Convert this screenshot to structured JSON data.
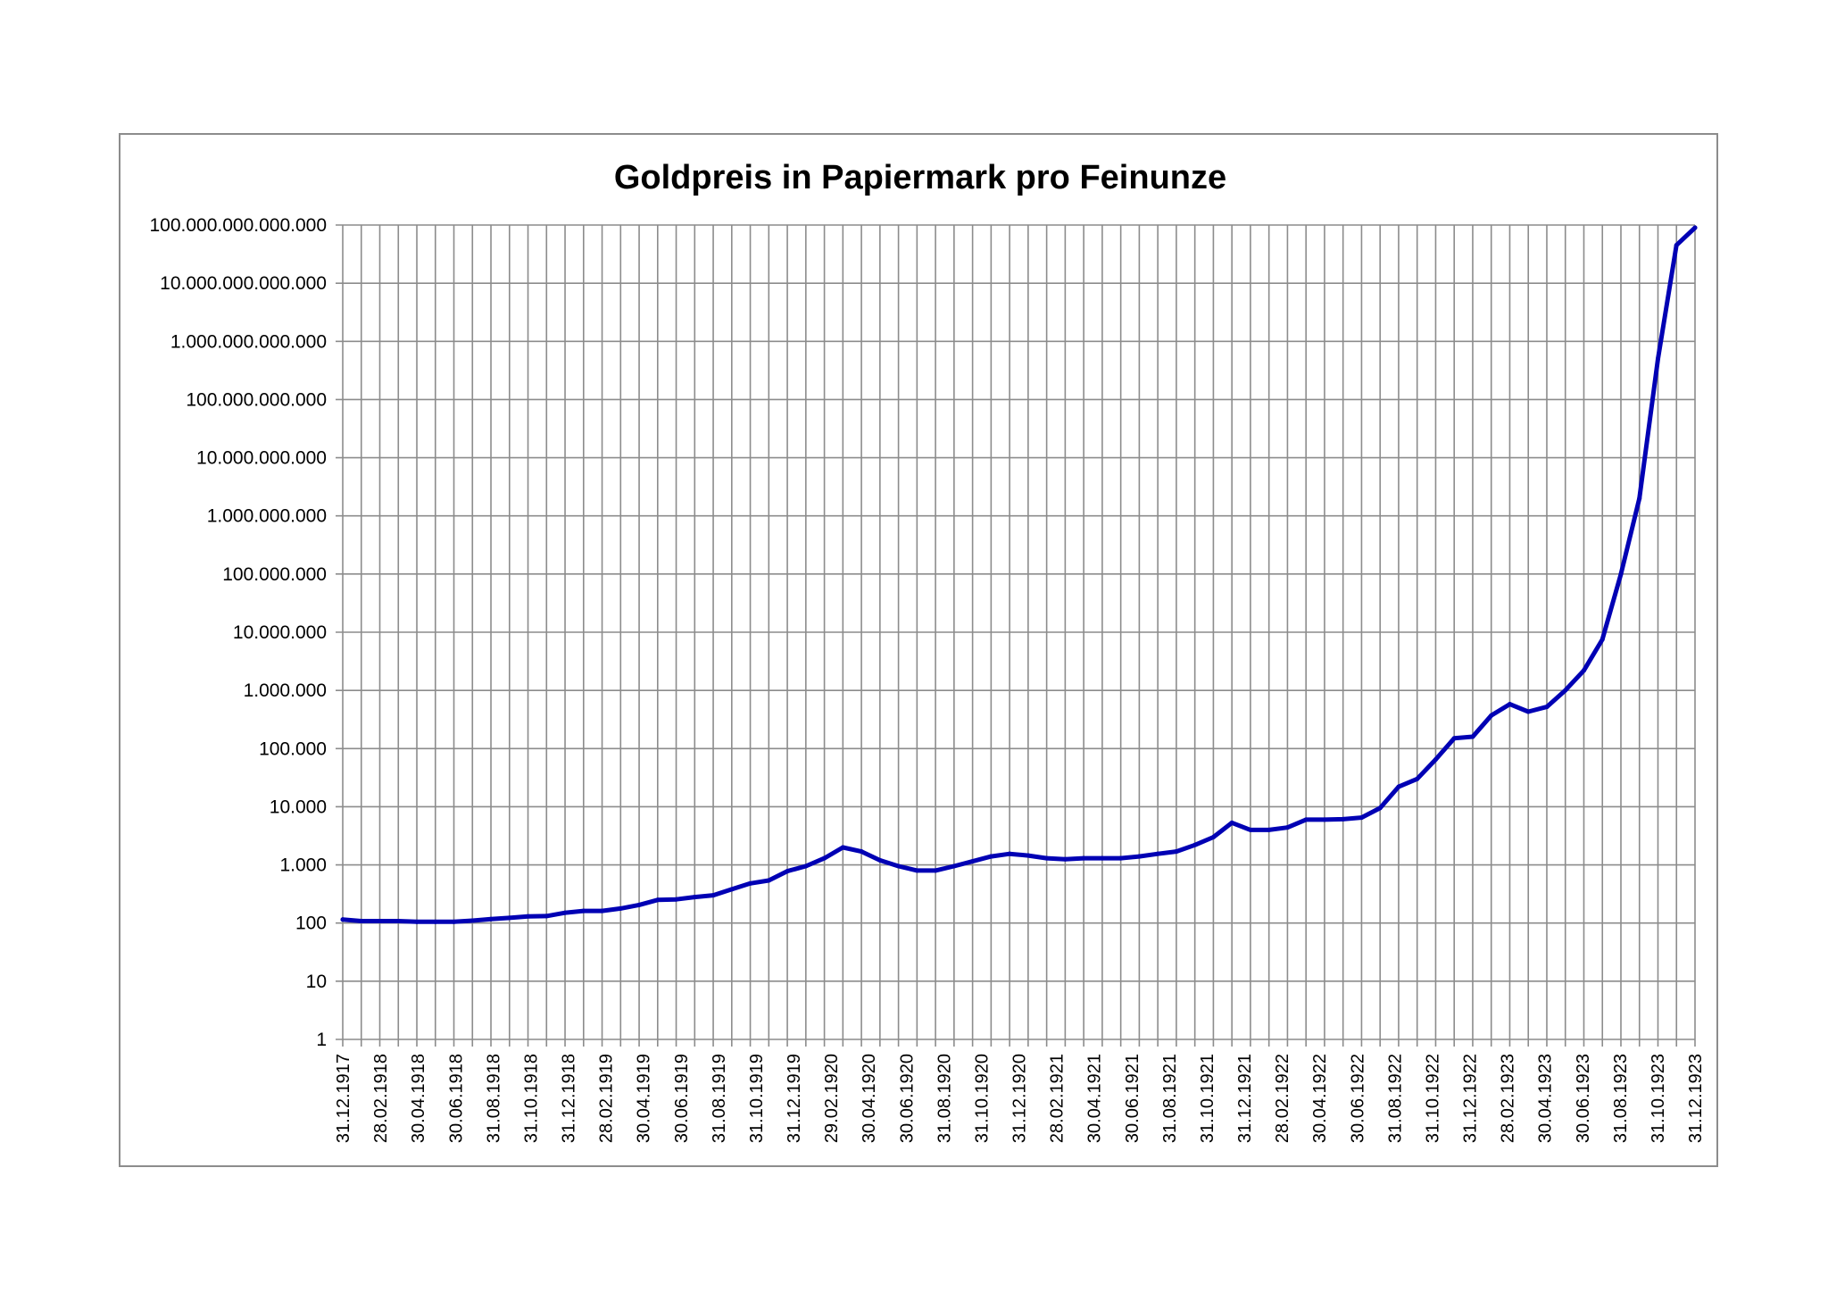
{
  "chart_data": {
    "type": "line",
    "title": "Goldpreis in Papiermark pro Feinunze",
    "y_scale": "log",
    "ylim": [
      1,
      100000000000000
    ],
    "y_tick_labels": [
      "1",
      "10",
      "100",
      "1.000",
      "10.000",
      "100.000",
      "1.000.000",
      "10.000.000",
      "100.000.000",
      "1.000.000.000",
      "10.000.000.000",
      "100.000.000.000",
      "1.000.000.000.000",
      "10.000.000.000.000",
      "100.000.000.000.000"
    ],
    "x_tick_labels": [
      "31.12.1917",
      "28.02.1918",
      "30.04.1918",
      "30.06.1918",
      "31.08.1918",
      "31.10.1918",
      "31.12.1918",
      "28.02.1919",
      "30.04.1919",
      "30.06.1919",
      "31.08.1919",
      "31.10.1919",
      "31.12.1919",
      "29.02.1920",
      "30.04.1920",
      "30.06.1920",
      "31.08.1920",
      "31.10.1920",
      "31.12.1920",
      "28.02.1921",
      "30.04.1921",
      "30.06.1921",
      "31.08.1921",
      "31.10.1921",
      "31.12.1921",
      "28.02.1922",
      "30.04.1922",
      "30.06.1922",
      "31.08.1922",
      "31.10.1922",
      "31.12.1922",
      "28.02.1923",
      "30.04.1923",
      "30.06.1923",
      "31.08.1923",
      "31.10.1923",
      "31.12.1923"
    ],
    "grid": true,
    "legend": "none",
    "line_color": "#0000b4",
    "series": [
      {
        "values": [
          115,
          108,
          108,
          108,
          105,
          105,
          105,
          110,
          117,
          123,
          130,
          132,
          150,
          162,
          162,
          178,
          205,
          250,
          255,
          280,
          300,
          380,
          480,
          540,
          780,
          950,
          1300,
          2000,
          1700,
          1200,
          950,
          800,
          800,
          950,
          1150,
          1400,
          1550,
          1450,
          1300,
          1250,
          1300,
          1300,
          1300,
          1400,
          1550,
          1700,
          2200,
          3000,
          5300,
          4000,
          4000,
          4400,
          6000,
          6000,
          6100,
          6500,
          9500,
          22000,
          30000,
          65000,
          150000,
          160000,
          370000,
          580000,
          430000,
          520000,
          1000000,
          2200000,
          7500000,
          100000000,
          2000000000,
          500000000000,
          45000000000000,
          90000000000000
        ]
      }
    ]
  }
}
